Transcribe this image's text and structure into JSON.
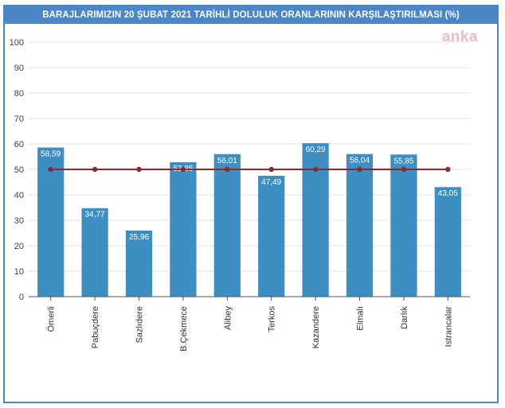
{
  "title": "BARAJLARIMIZIN 20 ŞUBAT 2021 TARİHLİ DOLULUK ORANLARININ KARŞILAŞTIRILMASI (%)",
  "watermark": "anka",
  "chart_data": {
    "type": "bar",
    "categories": [
      "Ömerli",
      "Pabuçdere",
      "Sazlıdere",
      "B.Çekmece",
      "Alibey",
      "Terkos",
      "Kazandere",
      "Elmalı",
      "Darlık",
      "Istrancalar"
    ],
    "series": [
      {
        "values": [
          58.59,
          34.77,
          25.96,
          52.85,
          56.01,
          47.49,
          60.29,
          56.04,
          55.85,
          43.05
        ],
        "color": "#3d8fc3"
      }
    ],
    "value_labels": [
      "58,59",
      "34,77",
      "25,96",
      "52,85",
      "56,01",
      "47,49",
      "60,29",
      "56,04",
      "55,85",
      "43,05"
    ],
    "reference_line": {
      "value": 50,
      "color": "#8b2a2a"
    },
    "yticks": [
      "0",
      "10",
      "20",
      "30",
      "40",
      "50",
      "60",
      "70",
      "80",
      "90",
      "100"
    ],
    "ylim": [
      0,
      100
    ],
    "grid": true,
    "xlabel": "",
    "ylabel": ""
  }
}
